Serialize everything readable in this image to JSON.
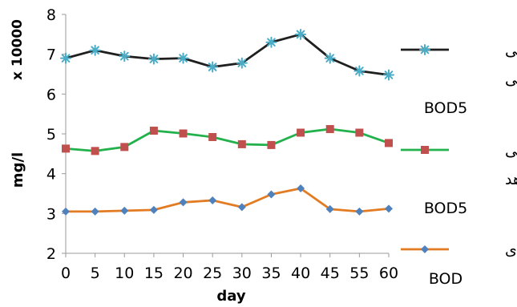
{
  "chart_data": {
    "type": "line",
    "x": [
      0,
      5,
      10,
      15,
      20,
      25,
      30,
      35,
      40,
      45,
      55,
      60
    ],
    "x_ticks": [
      "0",
      "5",
      "10",
      "15",
      "20",
      "25",
      "30",
      "35",
      "40",
      "45",
      "55",
      "60"
    ],
    "ylim": [
      2,
      8
    ],
    "y_ticks": [
      "2",
      "3",
      "4",
      "5",
      "6",
      "7",
      "8"
    ],
    "xlabel": "day",
    "ylabel": "mg/l",
    "y_multiplier_label": "x 10000",
    "grid": false,
    "legend_position": "right",
    "series": [
      {
        "name_lines": [
          "خروجی",
          "اصلی",
          "BOD5"
        ],
        "color": "#1f1f1f",
        "marker": "asterisk",
        "marker_color": "#4bacc6",
        "values": [
          6.9,
          7.1,
          6.95,
          6.88,
          6.9,
          6.68,
          6.78,
          7.3,
          7.5,
          6.9,
          6.58,
          6.48
        ]
      },
      {
        "name_lines": [
          "خروجی",
          "شاهد",
          "BOD5"
        ],
        "color": "#22b14c",
        "marker": "square",
        "marker_color": "#c0504d",
        "values": [
          4.63,
          4.57,
          4.67,
          5.08,
          5.01,
          4.92,
          4.74,
          4.72,
          5.03,
          5.12,
          5.03,
          4.77
        ]
      },
      {
        "name_lines": [
          "ورودی",
          "BOD"
        ],
        "color": "#e37b22",
        "marker": "diamond",
        "marker_color": "#4f81bd",
        "values": [
          3.05,
          3.05,
          3.07,
          3.09,
          3.28,
          3.33,
          3.16,
          3.48,
          3.63,
          3.11,
          3.05,
          3.12
        ]
      }
    ]
  }
}
